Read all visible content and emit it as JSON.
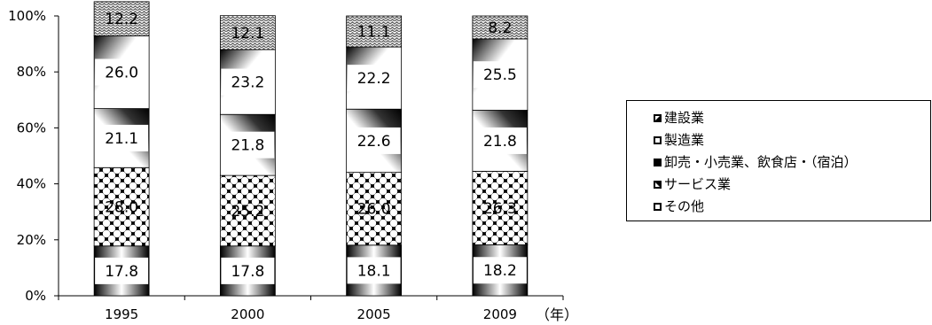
{
  "chart_data": {
    "type": "bar",
    "stacked": true,
    "categories": [
      "1995",
      "2000",
      "2005",
      "2009"
    ],
    "ylim": [
      0,
      100
    ],
    "yticks": [
      "0%",
      "20%",
      "40%",
      "60%",
      "80%",
      "100%"
    ],
    "xlabel": "（年）",
    "grid": false,
    "legend_placement": "right",
    "series": [
      {
        "name": "その他",
        "values": [
          17.8,
          17.8,
          18.1,
          18.2
        ],
        "pattern": "gradient"
      },
      {
        "name": "サービス業",
        "values": [
          28.0,
          25.2,
          26.0,
          26.3
        ],
        "pattern": "checker"
      },
      {
        "name": "卸売・小売業、飲食店・（宿泊）",
        "values": [
          21.1,
          21.8,
          22.6,
          21.8
        ],
        "pattern": "gradient"
      },
      {
        "name": "製造業",
        "values": [
          26.0,
          23.2,
          22.2,
          25.5
        ],
        "pattern": "gradient"
      },
      {
        "name": "建設業",
        "values": [
          12.2,
          12.1,
          11.1,
          8.2
        ],
        "pattern": "wave"
      }
    ],
    "labels": {
      "その他": [
        "17.8",
        "17.8",
        "18.1",
        "18.2"
      ],
      "サービス業": [
        "28.0",
        "25.2",
        "26.0",
        "26.3"
      ],
      "卸売・小売業、飲食店・（宿泊）": [
        "21.1",
        "21.8",
        "22.6",
        "21.8"
      ],
      "製造業": [
        "26.0",
        "23.2",
        "22.2",
        "25.5"
      ],
      "建設業": [
        "12.2",
        "12.1",
        "11.1",
        "8.2"
      ]
    }
  },
  "legend": {
    "items": [
      "建設業",
      "製造業",
      "卸売・小売業、飲食店・（宿泊）",
      "サービス業",
      "その他"
    ]
  }
}
